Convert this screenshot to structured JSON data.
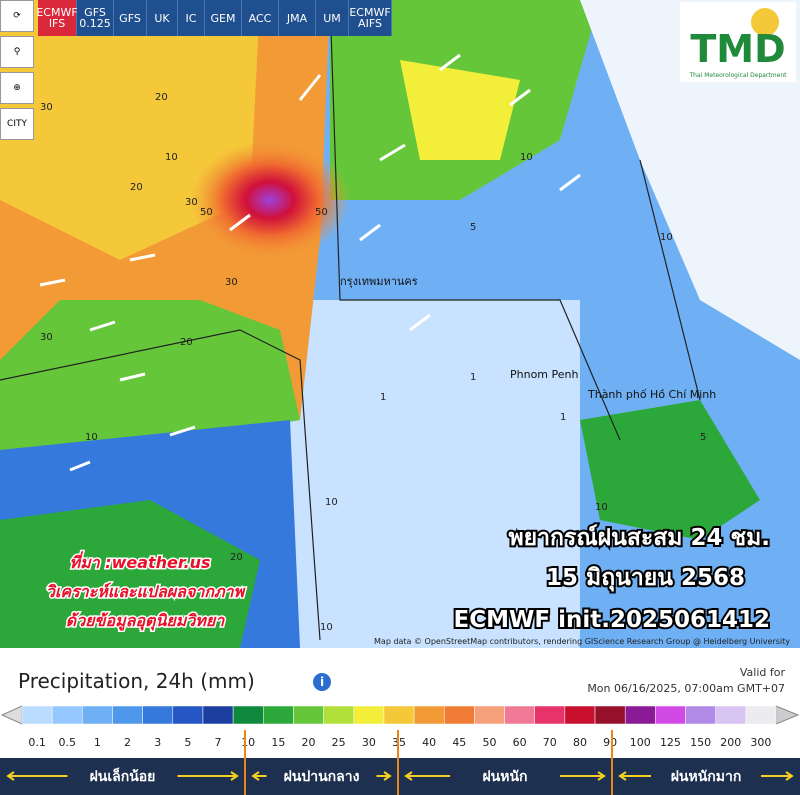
{
  "toolbar": {
    "models": [
      "ECMWF IFS",
      "GFS 0.125",
      "GFS",
      "UK",
      "IC",
      "GEM",
      "ACC",
      "JMA",
      "UM",
      "ECMWF AIFS"
    ],
    "city": "CITY"
  },
  "logo": {
    "title": "TMD",
    "subtitle": "Thai Meteorological Department"
  },
  "map": {
    "places": [
      "กรุงเทพมหานคร",
      "Phnom Penh",
      "Thành phố Hồ Chí Minh"
    ],
    "contour_labels": [
      "30",
      "20",
      "30",
      "20",
      "10",
      "50",
      "50",
      "30",
      "30",
      "20",
      "10",
      "10",
      "5",
      "1",
      "1",
      "10",
      "20",
      "10",
      "10",
      "1",
      "10",
      "5"
    ],
    "attribution": "Map data © OpenStreetMap contributors, rendering GIScience Research Group @ Heidelberg University"
  },
  "overlay": {
    "forecast": [
      "พยากรณ์ฝนสะสม 24 ชม.",
      "15 มิถุนายน 2568",
      "ECMWF init.2025061412"
    ],
    "credit": [
      "ที่มา :weather.us",
      "วิเคราะห์และแปลผลจากภาพ",
      "ด้วยข้อมูลอุตุนิยมวิทยา"
    ]
  },
  "legend": {
    "title": "Precipitation, 24h (mm)",
    "valid_label": "Valid for",
    "valid_time": "Mon 06/16/2025, 07:00am GMT+07",
    "ticks": [
      0.1,
      0.5,
      1,
      2,
      3,
      5,
      7,
      10,
      15,
      20,
      25,
      30,
      35,
      40,
      45,
      50,
      60,
      70,
      80,
      90,
      100,
      125,
      150,
      200,
      300
    ],
    "colors": [
      "#b9dcff",
      "#94c8ff",
      "#6fb0f5",
      "#4f97ea",
      "#3479db",
      "#2457c4",
      "#1c3f9f",
      "#0f8a3c",
      "#2ca83a",
      "#66c63a",
      "#b2e03a",
      "#f2ee3a",
      "#f5c83a",
      "#f29a36",
      "#f07b34",
      "#f5a07a",
      "#f07a96",
      "#e8326a",
      "#c8102e",
      "#96102c",
      "#8a1a96",
      "#d24ae6",
      "#b08ae6",
      "#d8c4f0",
      "#ececf0"
    ],
    "categories": [
      "ฝนเล็กน้อย",
      "ฝนปานกลาง",
      "ฝนหนัก",
      "ฝนหนักมาก"
    ]
  }
}
